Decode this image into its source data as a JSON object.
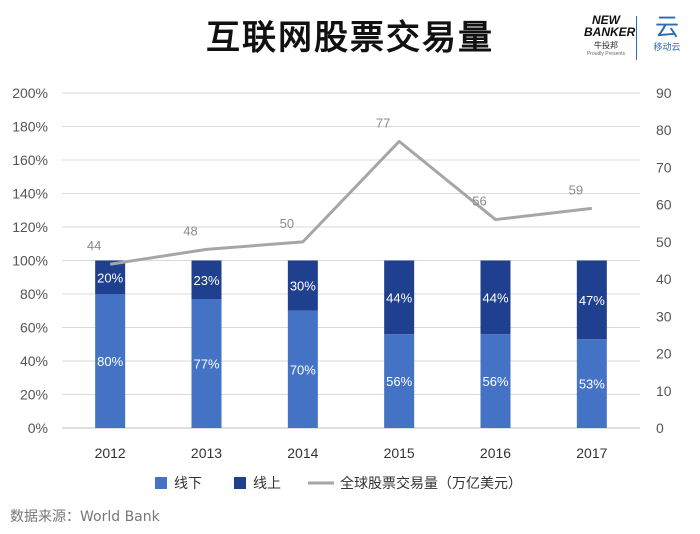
{
  "title": "互联网股票交易量",
  "logos": {
    "left_main": "NEW\nBANKER",
    "left_sub": "牛投邦",
    "left_tiny": "Proudly Presents",
    "right_glyph": "云",
    "right_sub": "移动云"
  },
  "source": "数据来源：World Bank",
  "colors": {
    "offline": "#4472c4",
    "online": "#1f3f8f",
    "line": "#a6a6a6"
  },
  "chart_data": {
    "type": "bar",
    "stacked": true,
    "title": "互联网股票交易量",
    "categories": [
      "2012",
      "2013",
      "2014",
      "2015",
      "2016",
      "2017"
    ],
    "series": [
      {
        "name": "线下",
        "type": "bar",
        "axis": "left",
        "values": [
          80,
          77,
          70,
          56,
          56,
          53
        ],
        "labels": [
          "80%",
          "77%",
          "70%",
          "56%",
          "56%",
          "53%"
        ]
      },
      {
        "name": "线上",
        "type": "bar",
        "axis": "left",
        "values": [
          20,
          23,
          30,
          44,
          44,
          47
        ],
        "labels": [
          "20%",
          "23%",
          "30%",
          "44%",
          "44%",
          "47%"
        ]
      },
      {
        "name": "全球股票交易量（万亿美元）",
        "type": "line",
        "axis": "right",
        "values": [
          44,
          48,
          50,
          77,
          56,
          59
        ],
        "labels": [
          "44",
          "48",
          "50",
          "77",
          "56",
          "59"
        ]
      }
    ],
    "y_left": {
      "min": 0,
      "max": 200,
      "step": 20,
      "ticks": [
        "0%",
        "20%",
        "40%",
        "60%",
        "80%",
        "100%",
        "120%",
        "140%",
        "160%",
        "180%",
        "200%"
      ]
    },
    "y_right": {
      "min": 0,
      "max": 90,
      "step": 10,
      "ticks": [
        "0",
        "10",
        "20",
        "30",
        "40",
        "50",
        "60",
        "70",
        "80",
        "90"
      ]
    },
    "legend": [
      "线下",
      "线上",
      "全球股票交易量（万亿美元）"
    ],
    "legend_position": "bottom",
    "grid": true
  }
}
